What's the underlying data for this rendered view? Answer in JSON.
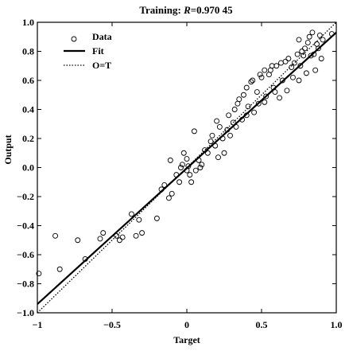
{
  "chart_data": {
    "type": "scatter",
    "title_prefix": "Training: ",
    "title_var": "R",
    "title_value": "=0.970 45",
    "xlabel": "Target",
    "ylabel": "Output",
    "xlim": [
      -1,
      1
    ],
    "ylim": [
      -1,
      1
    ],
    "x_ticks": [
      -1,
      -0.5,
      0,
      0.5,
      1
    ],
    "x_tick_labels": [
      "−1",
      "−0.5",
      "0",
      "0.5",
      "1.0"
    ],
    "y_ticks": [
      -1,
      -0.8,
      -0.6,
      -0.4,
      -0.2,
      0,
      0.2,
      0.4,
      0.6,
      0.8,
      1
    ],
    "y_tick_labels": [
      "−1.0",
      "−0.8",
      "−0.6",
      "−0.4",
      "−0.2",
      "0.0",
      "0.2",
      "0.4",
      "0.6",
      "0.8",
      "1.0"
    ],
    "grid": false,
    "legend_position": "top-left",
    "legend": [
      {
        "label": "Data",
        "style": "marker"
      },
      {
        "label": "Fit",
        "style": "solid"
      },
      {
        "label": "O=T",
        "style": "dotted"
      }
    ],
    "fit_line": {
      "slope": 0.935,
      "intercept": -0.005
    },
    "identity_line": {
      "slope": 1,
      "intercept": 0
    },
    "points": [
      [
        -0.99,
        -0.73
      ],
      [
        -0.88,
        -0.47
      ],
      [
        -0.85,
        -0.7
      ],
      [
        -0.73,
        -0.5
      ],
      [
        -0.68,
        -0.63
      ],
      [
        -0.58,
        -0.49
      ],
      [
        -0.56,
        -0.45
      ],
      [
        -0.47,
        -0.47
      ],
      [
        -0.45,
        -0.5
      ],
      [
        -0.43,
        -0.48
      ],
      [
        -0.37,
        -0.32
      ],
      [
        -0.34,
        -0.47
      ],
      [
        -0.32,
        -0.36
      ],
      [
        -0.3,
        -0.45
      ],
      [
        -0.2,
        -0.35
      ],
      [
        -0.17,
        -0.15
      ],
      [
        -0.15,
        -0.12
      ],
      [
        -0.12,
        -0.21
      ],
      [
        -0.1,
        -0.18
      ],
      [
        -0.11,
        0.05
      ],
      [
        -0.07,
        -0.05
      ],
      [
        -0.05,
        -0.1
      ],
      [
        -0.04,
        0.0
      ],
      [
        -0.03,
        0.02
      ],
      [
        -0.02,
        0.1
      ],
      [
        0.0,
        0.06
      ],
      [
        0.0,
        -0.02
      ],
      [
        0.01,
        0.01
      ],
      [
        0.02,
        -0.05
      ],
      [
        0.03,
        -0.1
      ],
      [
        0.05,
        0.25
      ],
      [
        0.06,
        -0.02
      ],
      [
        0.08,
        0.05
      ],
      [
        0.09,
        0.0
      ],
      [
        0.1,
        0.02
      ],
      [
        0.12,
        0.12
      ],
      [
        0.14,
        0.1
      ],
      [
        0.16,
        0.18
      ],
      [
        0.17,
        0.22
      ],
      [
        0.19,
        0.15
      ],
      [
        0.2,
        0.32
      ],
      [
        0.21,
        0.07
      ],
      [
        0.22,
        0.28
      ],
      [
        0.24,
        0.2
      ],
      [
        0.25,
        0.1
      ],
      [
        0.27,
        0.26
      ],
      [
        0.28,
        0.36
      ],
      [
        0.29,
        0.22
      ],
      [
        0.31,
        0.31
      ],
      [
        0.32,
        0.4
      ],
      [
        0.33,
        0.28
      ],
      [
        0.34,
        0.44
      ],
      [
        0.35,
        0.47
      ],
      [
        0.37,
        0.33
      ],
      [
        0.38,
        0.5
      ],
      [
        0.4,
        0.36
      ],
      [
        0.4,
        0.55
      ],
      [
        0.41,
        0.42
      ],
      [
        0.43,
        0.59
      ],
      [
        0.44,
        0.6
      ],
      [
        0.45,
        0.38
      ],
      [
        0.47,
        0.52
      ],
      [
        0.48,
        0.44
      ],
      [
        0.49,
        0.64
      ],
      [
        0.5,
        0.62
      ],
      [
        0.52,
        0.67
      ],
      [
        0.52,
        0.45
      ],
      [
        0.53,
        0.49
      ],
      [
        0.55,
        0.64
      ],
      [
        0.56,
        0.67
      ],
      [
        0.57,
        0.7
      ],
      [
        0.58,
        0.55
      ],
      [
        0.59,
        0.52
      ],
      [
        0.6,
        0.7
      ],
      [
        0.62,
        0.48
      ],
      [
        0.63,
        0.72
      ],
      [
        0.64,
        0.6
      ],
      [
        0.66,
        0.73
      ],
      [
        0.67,
        0.53
      ],
      [
        0.68,
        0.75
      ],
      [
        0.7,
        0.69
      ],
      [
        0.71,
        0.62
      ],
      [
        0.72,
        0.72
      ],
      [
        0.74,
        0.78
      ],
      [
        0.75,
        0.6
      ],
      [
        0.75,
        0.88
      ],
      [
        0.76,
        0.7
      ],
      [
        0.77,
        0.8
      ],
      [
        0.78,
        0.77
      ],
      [
        0.79,
        0.82
      ],
      [
        0.8,
        0.65
      ],
      [
        0.81,
        0.86
      ],
      [
        0.82,
        0.9
      ],
      [
        0.83,
        0.77
      ],
      [
        0.84,
        0.93
      ],
      [
        0.85,
        0.78
      ],
      [
        0.86,
        0.67
      ],
      [
        0.87,
        0.85
      ],
      [
        0.88,
        0.82
      ],
      [
        0.89,
        0.91
      ],
      [
        0.9,
        0.75
      ],
      [
        0.91,
        0.88
      ],
      [
        0.97,
        0.92
      ]
    ]
  }
}
